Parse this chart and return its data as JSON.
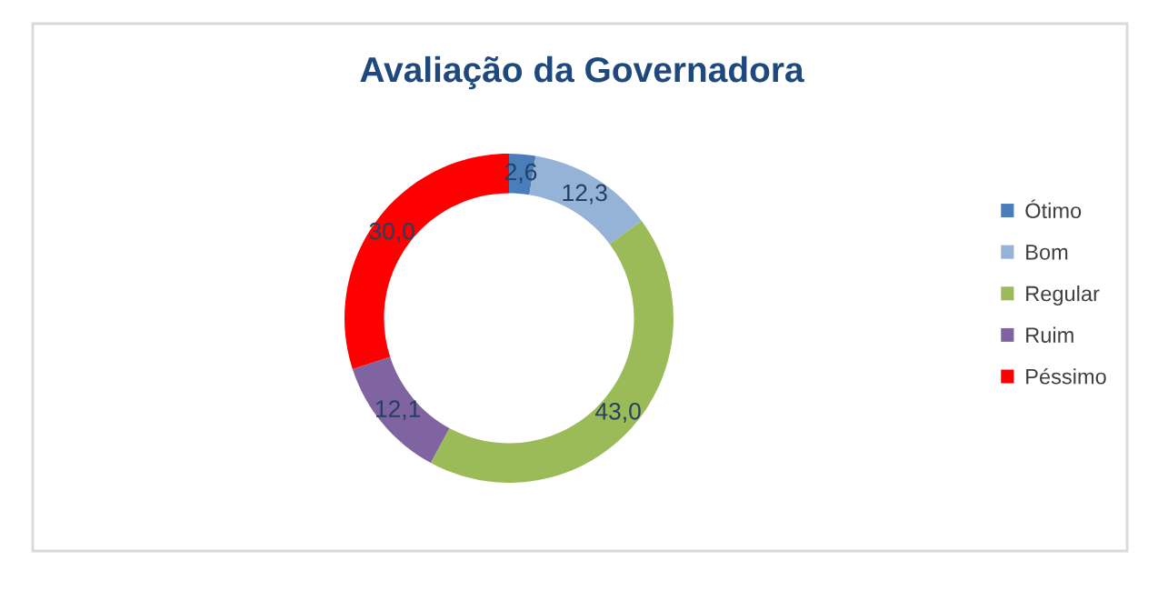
{
  "chart_data": {
    "type": "donut",
    "title": "Avaliação da Governadora",
    "categories": [
      "Ótimo",
      "Bom",
      "Regular",
      "Ruim",
      "Péssimo"
    ],
    "values": [
      2.6,
      12.3,
      43.0,
      12.1,
      30.0
    ],
    "value_labels": [
      "2,6",
      "12,3",
      "43,0",
      "12,1",
      "30,0"
    ],
    "colors": [
      "#4a7ebb",
      "#95b3d7",
      "#9bbb59",
      "#8064a2",
      "#ff0000"
    ],
    "legend": "right"
  }
}
